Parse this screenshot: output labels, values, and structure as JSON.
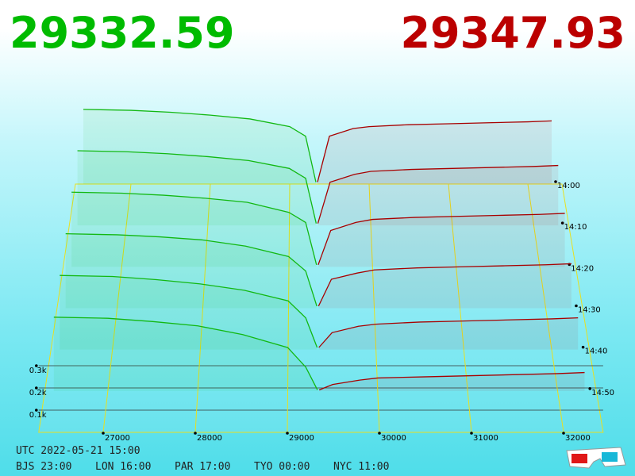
{
  "chart_data": {
    "type": "depth3d",
    "best_bid": 29332.59,
    "best_ask": 29347.93,
    "bid_color": "#12b812",
    "ask_color": "#a80000",
    "xlim": [
      26300,
      32430
    ],
    "xticks": [
      27000,
      28000,
      29000,
      30000,
      31000,
      32000
    ],
    "tlim": [
      840,
      900
    ],
    "tticks": [
      {
        "value": 840,
        "label": "14:00"
      },
      {
        "value": 850,
        "label": "14:10"
      },
      {
        "value": 860,
        "label": "14:20"
      },
      {
        "value": 870,
        "label": "14:30"
      },
      {
        "value": 880,
        "label": "14:40"
      },
      {
        "value": 890,
        "label": "14:50"
      }
    ],
    "zlim": [
      0,
      400
    ],
    "zticks": [
      {
        "value": 100,
        "label": "0.1k"
      },
      {
        "value": 200,
        "label": "0.2k"
      },
      {
        "value": 300,
        "label": "0.3k"
      }
    ],
    "bid_prices": [
      26400,
      27000,
      27500,
      28000,
      28500,
      29000,
      29200,
      29330
    ],
    "ask_prices": [
      29350,
      29500,
      29800,
      30000,
      30500,
      31000,
      31500,
      32000,
      32300
    ],
    "snapshots": [
      {
        "time": 840,
        "bids": [
          390,
          385,
          375,
          360,
          340,
          300,
          250,
          10
        ],
        "asks": [
          10,
          250,
          290,
          300,
          310,
          315,
          320,
          325,
          330
        ]
      },
      {
        "time": 850,
        "bids": [
          380,
          375,
          365,
          350,
          330,
          290,
          240,
          10
        ],
        "asks": [
          10,
          220,
          260,
          275,
          285,
          290,
          295,
          300,
          305
        ]
      },
      {
        "time": 860,
        "bids": [
          370,
          365,
          355,
          340,
          320,
          270,
          220,
          10
        ],
        "asks": [
          10,
          180,
          220,
          235,
          245,
          250,
          255,
          260,
          265
        ]
      },
      {
        "time": 870,
        "bids": [
          360,
          355,
          345,
          330,
          300,
          250,
          180,
          10
        ],
        "asks": [
          10,
          140,
          170,
          185,
          195,
          200,
          205,
          210,
          215
        ]
      },
      {
        "time": 880,
        "bids": [
          350,
          345,
          330,
          310,
          280,
          230,
          150,
          10
        ],
        "asks": [
          10,
          80,
          110,
          120,
          130,
          135,
          140,
          145,
          150
        ]
      },
      {
        "time": 890,
        "bids": [
          340,
          335,
          320,
          300,
          260,
          200,
          110,
          5
        ],
        "asks": [
          5,
          30,
          50,
          60,
          65,
          70,
          75,
          80,
          85
        ]
      }
    ]
  },
  "footer": {
    "utc": "UTC 2022-05-21 15:00",
    "zones": [
      "BJS 23:00",
      "LON 16:00",
      "PAR 17:00",
      "TYO 00:00",
      "NYC 11:00"
    ]
  }
}
